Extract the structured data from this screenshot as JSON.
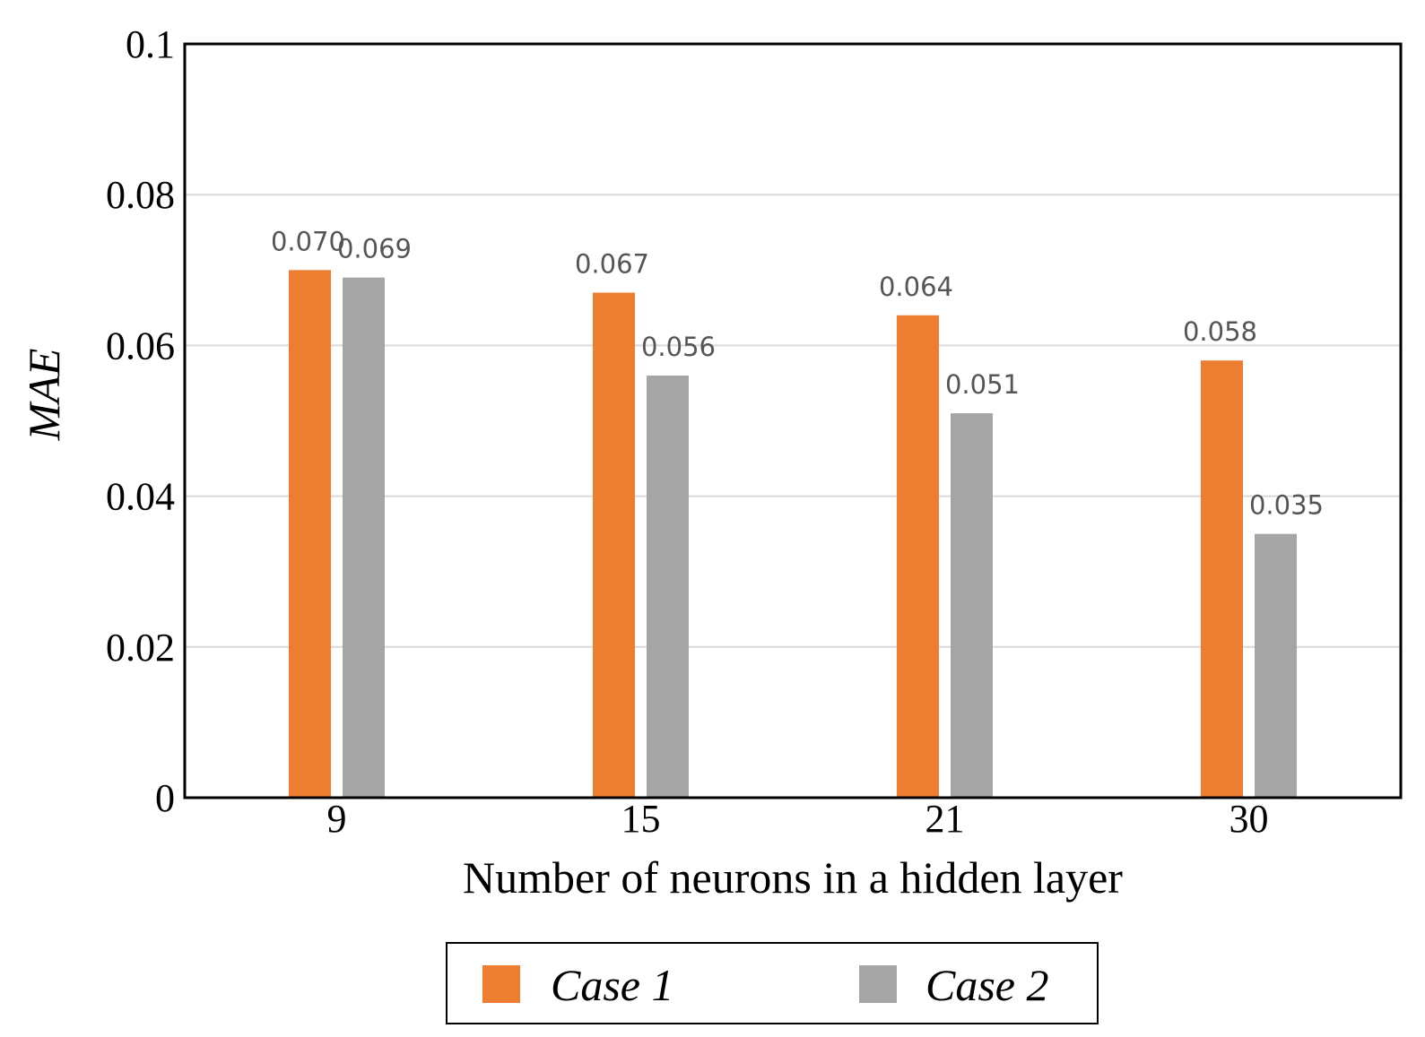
{
  "chart_data": {
    "type": "bar",
    "categories": [
      "9",
      "15",
      "21",
      "30"
    ],
    "series": [
      {
        "name": "Case 1",
        "color": "#ED7D31",
        "values": [
          0.07,
          0.067,
          0.064,
          0.058
        ],
        "labels": [
          "0.070",
          "0.067",
          "0.064",
          "0.058"
        ]
      },
      {
        "name": "Case 2",
        "color": "#A5A5A5",
        "values": [
          0.069,
          0.056,
          0.051,
          0.035
        ],
        "labels": [
          "0.069",
          "0.056",
          "0.051",
          "0.035"
        ]
      }
    ],
    "xlabel": "Number of neurons in a hidden layer",
    "ylabel": "MAE",
    "ylim": [
      0,
      0.1
    ],
    "yticks": [
      0,
      0.02,
      0.04,
      0.06,
      0.08,
      0.1
    ],
    "ytick_labels": [
      "0",
      "0.02",
      "0.04",
      "0.06",
      "0.08",
      "0.1"
    ],
    "grid": true,
    "legend_position": "bottom"
  }
}
